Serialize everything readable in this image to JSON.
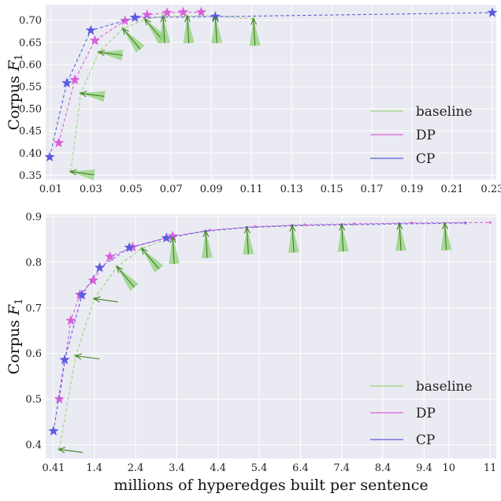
{
  "colors": {
    "baseline": "#99d67a",
    "DP": "#d95fd9",
    "CP": "#5c5ce0",
    "arrow": "#3f7f1f",
    "wedge": "#8fd27a"
  },
  "chart_data": [
    {
      "type": "line",
      "ylabel_text": "Corpus ",
      "ylabel_sym": "F",
      "ylabel_sub": "1",
      "xlabel": "",
      "xlim": [
        0.0075,
        0.232
      ],
      "ylim": [
        0.34,
        0.735
      ],
      "xticks": [
        0.01,
        0.03,
        0.05,
        0.07,
        0.09,
        0.11,
        0.13,
        0.15,
        0.17,
        0.19,
        0.21,
        0.23
      ],
      "xtick_labels": [
        "0.01",
        "0.03",
        "0.05",
        "0.07",
        "0.09",
        "0.11",
        "0.13",
        "0.15",
        "0.17",
        "0.19",
        "0.21",
        "0.23"
      ],
      "yticks": [
        0.35,
        0.4,
        0.45,
        0.5,
        0.55,
        0.6,
        0.65,
        0.7
      ],
      "ytick_labels": [
        "0.35",
        "0.40",
        "0.45",
        "0.50",
        "0.55",
        "0.60",
        "0.65",
        "0.70"
      ],
      "legend": "lower-right",
      "grid": true,
      "series": [
        {
          "name": "baseline",
          "x": [
            0.02,
            0.025,
            0.034,
            0.046,
            0.057,
            0.066,
            0.078,
            0.092,
            0.111
          ],
          "y": [
            0.358,
            0.535,
            0.628,
            0.681,
            0.702,
            0.709,
            0.709,
            0.71,
            0.703
          ]
        },
        {
          "name": "DP",
          "x": [
            0.014,
            0.022,
            0.032,
            0.047,
            0.058,
            0.068,
            0.076,
            0.085
          ],
          "y": [
            0.423,
            0.565,
            0.654,
            0.699,
            0.712,
            0.717,
            0.718,
            0.718
          ]
        },
        {
          "name": "CP",
          "x": [
            0.0095,
            0.018,
            0.03,
            0.052,
            0.092,
            0.23
          ],
          "y": [
            0.391,
            0.558,
            0.677,
            0.706,
            0.708,
            0.717
          ]
        }
      ],
      "arrows": [
        {
          "x": 0.02,
          "y": 0.358,
          "dir": "left"
        },
        {
          "x": 0.025,
          "y": 0.535,
          "dir": "left"
        },
        {
          "x": 0.034,
          "y": 0.628,
          "dir": "left"
        },
        {
          "x": 0.046,
          "y": 0.681,
          "dir": "up-left"
        },
        {
          "x": 0.057,
          "y": 0.702,
          "dir": "up-left"
        },
        {
          "x": 0.066,
          "y": 0.709,
          "dir": "up"
        },
        {
          "x": 0.078,
          "y": 0.709,
          "dir": "up"
        },
        {
          "x": 0.092,
          "y": 0.709,
          "dir": "up"
        },
        {
          "x": 0.111,
          "y": 0.703,
          "dir": "up"
        }
      ]
    },
    {
      "type": "line",
      "ylabel_text": "Corpus ",
      "ylabel_sym": "F",
      "ylabel_sub": "1",
      "xlabel": "millions of hyperedges built per sentence",
      "xlim": [
        0.22,
        11.15
      ],
      "ylim": [
        0.37,
        0.905
      ],
      "xticks": [
        0.41,
        1.4,
        2.4,
        3.4,
        4.4,
        5.4,
        6.4,
        7.4,
        8.4,
        9.4,
        10,
        11
      ],
      "xtick_labels": [
        "0.41",
        "1.4",
        "2.4",
        "3.4",
        "4.4",
        "5.4",
        "6.4",
        "7.4",
        "8.4",
        "9.4",
        "10",
        "11"
      ],
      "yticks": [
        0.4,
        0.5,
        0.6,
        0.7,
        0.8,
        0.9
      ],
      "ytick_labels": [
        "0.4",
        "0.5",
        "0.6",
        "0.7",
        "0.8",
        "0.9"
      ],
      "legend": "lower-right",
      "grid": true,
      "series": [
        {
          "name": "baseline",
          "x": [
            0.55,
            0.95,
            1.4,
            1.95,
            2.55,
            3.3,
            4.1,
            5.1,
            6.2,
            7.4,
            8.8,
            9.9
          ],
          "y": [
            0.39,
            0.595,
            0.72,
            0.79,
            0.83,
            0.855,
            0.868,
            0.876,
            0.88,
            0.882,
            0.884,
            0.885
          ]
        },
        {
          "name": "DP",
          "x": [
            0.55,
            0.83,
            1.05,
            1.37,
            1.78,
            2.33,
            3.3,
            4.2,
            5.3,
            6.5,
            7.7,
            9.1,
            11.0
          ],
          "y": [
            0.5,
            0.672,
            0.729,
            0.76,
            0.812,
            0.833,
            0.857,
            0.87,
            0.878,
            0.882,
            0.884,
            0.886,
            0.887
          ]
        },
        {
          "name": "CP",
          "x": [
            0.41,
            0.68,
            1.1,
            1.53,
            2.25,
            3.15,
            4.1,
            5.1,
            6.2,
            7.4,
            8.8,
            10.4
          ],
          "y": [
            0.43,
            0.586,
            0.728,
            0.788,
            0.832,
            0.853,
            0.868,
            0.876,
            0.88,
            0.882,
            0.884,
            0.886
          ]
        }
      ],
      "arrows": [
        {
          "x": 0.55,
          "y": 0.39,
          "dir": "left"
        },
        {
          "x": 0.95,
          "y": 0.595,
          "dir": "left"
        },
        {
          "x": 1.4,
          "y": 0.72,
          "dir": "left"
        },
        {
          "x": 1.95,
          "y": 0.79,
          "dir": "up-left"
        },
        {
          "x": 2.55,
          "y": 0.83,
          "dir": "up-left"
        },
        {
          "x": 3.3,
          "y": 0.855,
          "dir": "up"
        },
        {
          "x": 4.1,
          "y": 0.868,
          "dir": "up"
        },
        {
          "x": 5.1,
          "y": 0.876,
          "dir": "up"
        },
        {
          "x": 6.2,
          "y": 0.88,
          "dir": "up"
        },
        {
          "x": 7.4,
          "y": 0.882,
          "dir": "up"
        },
        {
          "x": 8.8,
          "y": 0.884,
          "dir": "up"
        },
        {
          "x": 9.9,
          "y": 0.885,
          "dir": "up"
        }
      ]
    }
  ]
}
